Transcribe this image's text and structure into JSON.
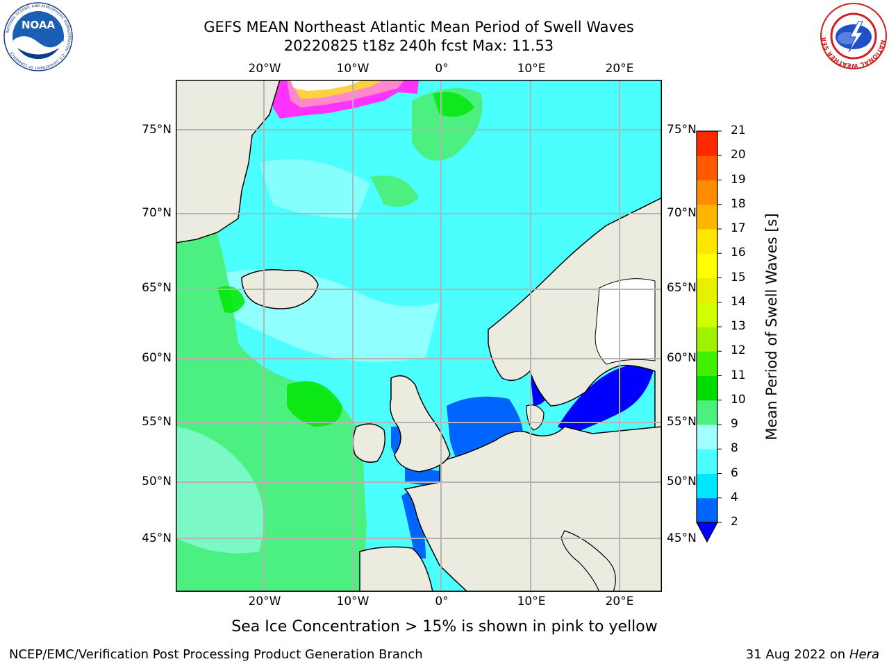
{
  "header": {
    "title_line1": "GEFS MEAN Northeast Atlantic Mean Period of Swell Waves",
    "title_line2": "20220825 t18z 240h fcst   Max: 11.53"
  },
  "logos": {
    "left": {
      "icon": "noaa-logo-icon",
      "center_text": "NOAA",
      "ring_text": "NATIONAL OCEANIC AND ATMOSPHERIC ADMINISTRATION · U.S. DEPARTMENT OF COMMERCE"
    },
    "right": {
      "icon": "nws-logo-icon",
      "ring_text": "NATIONAL WEATHER SERVICE"
    }
  },
  "map": {
    "projection": "stereographic",
    "lon_labels": [
      "20°W",
      "10°W",
      "0°",
      "10°E",
      "20°E"
    ],
    "lat_labels": [
      "75°N",
      "70°N",
      "65°N",
      "60°N",
      "55°N",
      "50°N",
      "45°N"
    ],
    "max_value": 11.53,
    "land_color": "#ecebdf",
    "grid_color": "#b4b4b4",
    "sea_ice_colors": [
      "#ff33ff",
      "#ff88cc",
      "#ffd040",
      "#ffff00"
    ]
  },
  "colorbar": {
    "label": "Mean Period of Swell Waves [s]",
    "ticks": [
      "2",
      "4",
      "6",
      "8",
      "9",
      "10",
      "11",
      "12",
      "13",
      "14",
      "15",
      "16",
      "17",
      "18",
      "19",
      "20",
      "21"
    ],
    "colors": [
      "#0064ff",
      "#00e6ff",
      "#4cffff",
      "#a0ffff",
      "#4cf080",
      "#00dc00",
      "#40f000",
      "#a0f000",
      "#d0ff00",
      "#e6f000",
      "#ffff00",
      "#ffe600",
      "#ffb400",
      "#ff8c00",
      "#ff5a00",
      "#ff2800"
    ],
    "under_color": "#0000ff"
  },
  "caption": "Sea Ice Concentration > 15% is shown in pink to yellow",
  "footer": {
    "left": "NCEP/EMC/Verification Post Processing Product Generation Branch",
    "right_date": "31 Aug 2022 on",
    "right_host": "Hera"
  }
}
